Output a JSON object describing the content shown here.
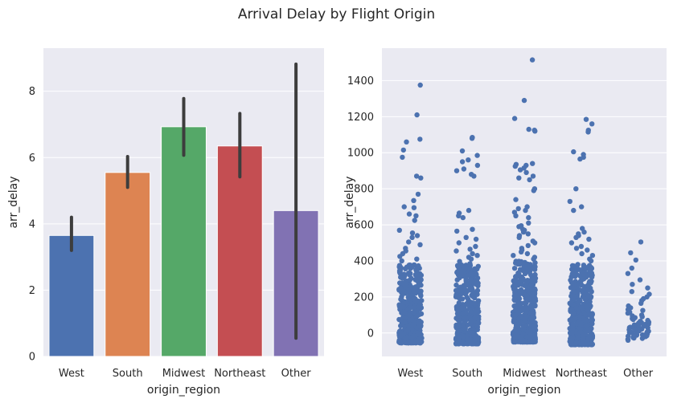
{
  "figure": {
    "title": "Arrival Delay by Flight Origin"
  },
  "chart_data": [
    {
      "type": "bar",
      "xlabel": "origin_region",
      "ylabel": "arr_delay",
      "categories": [
        "West",
        "South",
        "Midwest",
        "Northeast",
        "Other"
      ],
      "values": [
        3.65,
        5.55,
        6.93,
        6.35,
        4.4
      ],
      "ci_low": [
        3.2,
        5.1,
        6.07,
        5.42,
        0.55
      ],
      "ci_high": [
        4.2,
        6.03,
        7.78,
        7.33,
        8.82
      ],
      "colors": [
        "#4c72b0",
        "#dd8452",
        "#55a868",
        "#c44e52",
        "#8172b3"
      ],
      "error_bar_color": "#3d3d3d",
      "ylim": [
        0,
        9.3
      ],
      "yticks": [
        "0",
        "2",
        "4",
        "6",
        "8"
      ],
      "grid": true
    },
    {
      "type": "scatter",
      "subtype": "strip",
      "xlabel": "origin_region",
      "ylabel": "arr_delay",
      "categories": [
        "West",
        "South",
        "Midwest",
        "Northeast",
        "Other"
      ],
      "point_color": "#4c72b0",
      "ylim": [
        -130,
        1580
      ],
      "yticks": [
        "0",
        "200",
        "400",
        "600",
        "800",
        "1000",
        "1200",
        "1400"
      ],
      "grid": true,
      "series": [
        {
          "name": "West",
          "dense_range": [
            -55,
            380
          ],
          "outliers": [
            1375,
            1210,
            1075,
            1060,
            1015,
            975,
            870,
            860,
            770,
            735,
            700,
            695,
            660,
            650,
            625,
            570,
            555,
            540,
            530,
            505,
            490,
            470,
            455,
            440,
            425,
            410,
            400
          ]
        },
        {
          "name": "South",
          "dense_range": [
            -60,
            400
          ],
          "outliers": [
            1085,
            1080,
            1010,
            985,
            960,
            950,
            930,
            910,
            900,
            880,
            870,
            680,
            665,
            650,
            640,
            575,
            565,
            530,
            520,
            500,
            480,
            465,
            455,
            440,
            430,
            420,
            410
          ]
        },
        {
          "name": "Midwest",
          "dense_range": [
            -50,
            400
          ],
          "outliers": [
            1515,
            1290,
            1190,
            1130,
            1125,
            1120,
            940,
            935,
            930,
            925,
            915,
            905,
            890,
            870,
            860,
            850,
            800,
            790,
            740,
            700,
            690,
            680,
            670,
            650,
            640,
            610,
            595,
            590,
            575,
            570,
            560,
            550,
            540,
            530,
            510,
            500,
            485,
            470,
            460,
            450,
            440,
            430,
            420,
            410
          ]
        },
        {
          "name": "Northeast",
          "dense_range": [
            -65,
            380
          ],
          "outliers": [
            1185,
            1160,
            1125,
            1115,
            1005,
            990,
            975,
            965,
            800,
            730,
            700,
            680,
            580,
            560,
            550,
            540,
            530,
            520,
            500,
            480,
            470,
            460,
            440,
            430,
            410,
            400
          ]
        },
        {
          "name": "Other",
          "points": [
            505,
            445,
            405,
            360,
            330,
            295,
            270,
            250,
            230,
            215,
            200,
            190,
            180,
            165,
            150,
            140,
            130,
            125,
            115,
            110,
            100,
            95,
            90,
            85,
            80,
            75,
            70,
            65,
            60,
            58,
            55,
            50,
            48,
            45,
            40,
            38,
            35,
            32,
            30,
            28,
            25,
            22,
            20,
            18,
            15,
            12,
            10,
            8,
            5,
            3,
            0,
            -2,
            -5,
            -8,
            -10,
            -12,
            -15,
            -18,
            -20,
            -22,
            -25,
            -28,
            -30,
            -35,
            -40
          ]
        }
      ]
    }
  ]
}
